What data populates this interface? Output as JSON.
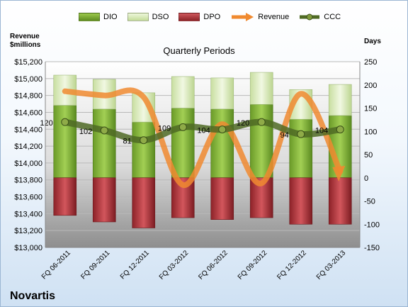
{
  "header": {
    "left_axis_title_line1": "Revenue",
    "left_axis_title_line2": "$millions",
    "right_axis_title": "Days"
  },
  "company": "Novartis",
  "colors": {
    "dio": "#7aaa30",
    "dso": "#d8eab4",
    "dpo": "#b03a40",
    "revenue": "#f08a30",
    "ccc": "#4f6a24"
  },
  "chart_data": {
    "type": "bar",
    "title": "Quarterly Periods",
    "categories": [
      "FQ 06-2011",
      "FQ 09-2011",
      "FQ 12-2011",
      "FQ 03-2012",
      "FQ 06-2012",
      "FQ 09-2012",
      "FQ 12-2012",
      "FQ 03-2013"
    ],
    "left_axis": {
      "label": "Revenue $millions",
      "min": 13000,
      "max": 15200,
      "step": 200
    },
    "right_axis": {
      "label": "Days",
      "min": -150,
      "max": 250,
      "step": 50
    },
    "series": [
      {
        "name": "DIO",
        "type": "stacked-bar",
        "axis": "right",
        "values": [
          156,
          148,
          120,
          150,
          148,
          158,
          126,
          134
        ]
      },
      {
        "name": "DSO",
        "type": "stacked-bar",
        "axis": "right",
        "values": [
          65,
          64,
          63,
          68,
          67,
          69,
          64,
          67
        ]
      },
      {
        "name": "DPO",
        "type": "stacked-bar-negative",
        "axis": "right",
        "values": [
          -81,
          -95,
          -108,
          -86,
          -90,
          -86,
          -100,
          -100
        ]
      },
      {
        "name": "Revenue",
        "type": "line",
        "axis": "left",
        "values": [
          14850,
          14800,
          14780,
          13740,
          14460,
          13760,
          14820,
          13900
        ]
      },
      {
        "name": "CCC",
        "type": "line",
        "axis": "right",
        "values": [
          120,
          102,
          81,
          109,
          104,
          120,
          94,
          104
        ]
      }
    ],
    "grid": true,
    "legend": "top"
  }
}
